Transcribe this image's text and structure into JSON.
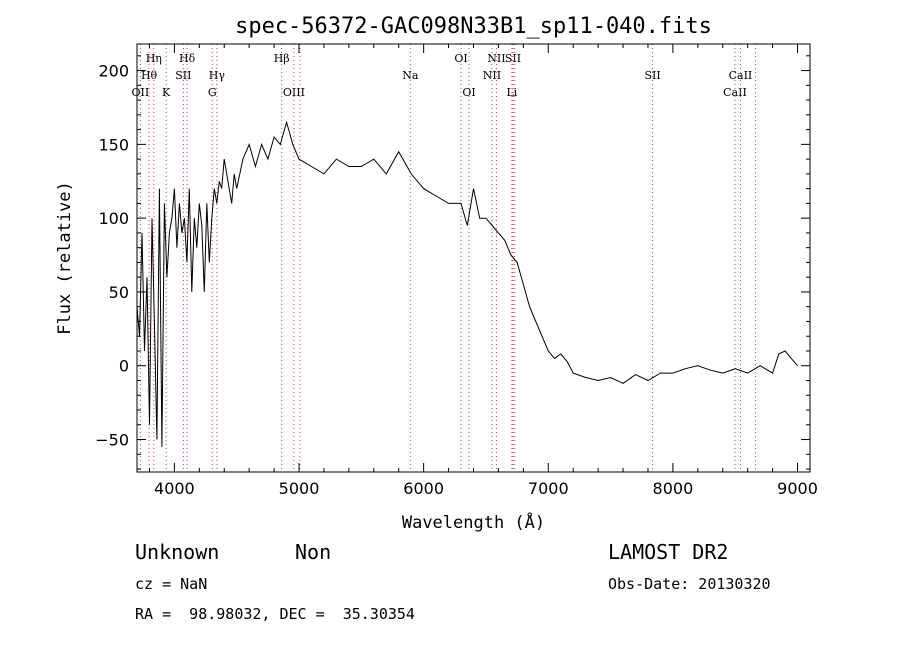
{
  "chart_data": {
    "type": "line",
    "title": "spec-56372-GAC098N33B1_sp11-040.fits",
    "xlabel": "Wavelength (Å)",
    "ylabel": "Flux (relative)",
    "xlim": [
      3700,
      9100
    ],
    "ylim": [
      -72,
      218
    ],
    "xticks": [
      4000,
      5000,
      6000,
      7000,
      8000,
      9000
    ],
    "yticks": [
      -50,
      0,
      50,
      100,
      150,
      200
    ],
    "series": [
      {
        "x": [
          3700,
          3720,
          3740,
          3760,
          3780,
          3800,
          3820,
          3840,
          3860,
          3880,
          3900,
          3920,
          3940,
          3960,
          3980,
          4000,
          4020,
          4040,
          4060,
          4080,
          4100,
          4120,
          4140,
          4160,
          4180,
          4200,
          4220,
          4240,
          4260,
          4280,
          4300,
          4320,
          4340,
          4360,
          4380,
          4400,
          4420,
          4440,
          4460,
          4480,
          4500,
          4550,
          4600,
          4650,
          4700,
          4750,
          4800,
          4850,
          4900,
          4950,
          5000,
          5100,
          5200,
          5300,
          5400,
          5500,
          5600,
          5700,
          5800,
          5900,
          6000,
          6100,
          6200,
          6300,
          6350,
          6400,
          6450,
          6500,
          6550,
          6600,
          6650,
          6700,
          6750,
          6800,
          6850,
          6900,
          6950,
          7000,
          7050,
          7100,
          7150,
          7200,
          7300,
          7400,
          7500,
          7600,
          7700,
          7800,
          7900,
          8000,
          8100,
          8200,
          8300,
          8400,
          8500,
          8600,
          8700,
          8800,
          8850,
          8900,
          8950,
          9000
        ],
        "y": [
          40,
          20,
          90,
          10,
          60,
          -40,
          100,
          30,
          -50,
          120,
          -55,
          110,
          60,
          90,
          100,
          120,
          80,
          110,
          90,
          100,
          70,
          120,
          50,
          100,
          80,
          110,
          95,
          50,
          110,
          70,
          100,
          120,
          110,
          125,
          120,
          140,
          130,
          120,
          110,
          130,
          120,
          140,
          150,
          135,
          150,
          140,
          155,
          150,
          165,
          150,
          140,
          135,
          130,
          140,
          135,
          135,
          140,
          130,
          145,
          130,
          120,
          115,
          110,
          110,
          95,
          120,
          100,
          100,
          95,
          90,
          85,
          75,
          70,
          55,
          40,
          30,
          20,
          10,
          5,
          8,
          3,
          -5,
          -8,
          -10,
          -8,
          -12,
          -6,
          -10,
          -5,
          -5,
          -2,
          0,
          -3,
          -5,
          -2,
          -5,
          0,
          -5,
          8,
          10,
          5,
          0
        ]
      }
    ],
    "lines": [
      {
        "wl": 3727,
        "label": "OII",
        "row": 2
      },
      {
        "wl": 3797,
        "label": "Hθ",
        "row": 1
      },
      {
        "wl": 3835,
        "label": "Hη",
        "row": 0
      },
      {
        "wl": 3934,
        "label": "K",
        "row": 2
      },
      {
        "wl": 4072,
        "label": "SII",
        "row": 1
      },
      {
        "wl": 4102,
        "label": "Hδ",
        "row": 0
      },
      {
        "wl": 4304,
        "label": "G",
        "row": 2
      },
      {
        "wl": 4341,
        "label": "Hγ",
        "row": 1
      },
      {
        "wl": 4861,
        "label": "Hβ",
        "row": 0
      },
      {
        "wl": 4959,
        "label": "OIII",
        "row": 2
      },
      {
        "wl": 5007,
        "label": "",
        "row": 2
      },
      {
        "wl": 5893,
        "label": "Na",
        "row": 1
      },
      {
        "wl": 6300,
        "label": "OI",
        "row": 0
      },
      {
        "wl": 6364,
        "label": "OI",
        "row": 2
      },
      {
        "wl": 6548,
        "label": "NII",
        "row": 1
      },
      {
        "wl": 6584,
        "label": "NII",
        "row": 0
      },
      {
        "wl": 6708,
        "label": "Li",
        "row": 2
      },
      {
        "wl": 6717,
        "label": "SII",
        "row": 0
      },
      {
        "wl": 6731,
        "label": "",
        "row": 0
      },
      {
        "wl": 7837,
        "label": "SII",
        "row": 1
      },
      {
        "wl": 8498,
        "label": "CaII",
        "row": 2
      },
      {
        "wl": 8542,
        "label": "CaII",
        "row": 1
      },
      {
        "wl": 8662,
        "label": "",
        "row": 1
      }
    ]
  },
  "info": {
    "class": "Unknown",
    "subclass": "Non",
    "survey": "LAMOST DR2",
    "cz": "cz = NaN",
    "obs_date": "Obs-Date: 20130320",
    "coords": "RA =  98.98032, DEC =  35.30354"
  }
}
